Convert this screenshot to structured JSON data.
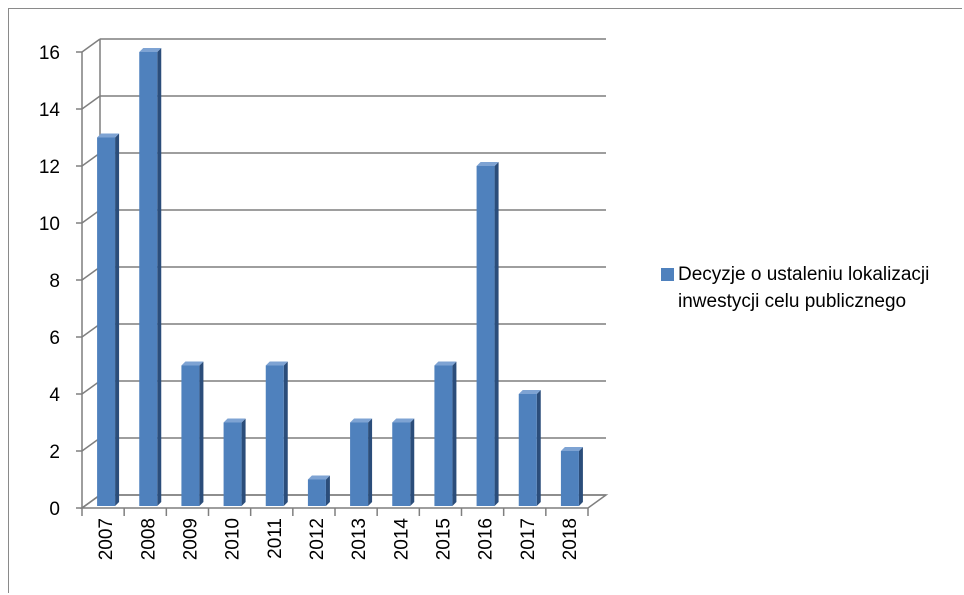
{
  "chart_data": {
    "type": "bar",
    "style": "3d-clustered-column",
    "categories": [
      "2007",
      "2008",
      "2009",
      "2010",
      "2011",
      "2012",
      "2013",
      "2014",
      "2015",
      "2016",
      "2017",
      "2018"
    ],
    "series": [
      {
        "name": "Decyzje o ustaleniu lokalizacji inwestycji celu publicznego",
        "values": [
          13,
          16,
          5,
          3,
          5,
          1,
          3,
          3,
          5,
          12,
          4,
          2
        ]
      }
    ],
    "ylim": [
      0,
      16
    ],
    "yticks": [
      0,
      2,
      4,
      6,
      8,
      10,
      12,
      14,
      16
    ],
    "grid": true,
    "legend_position": "right",
    "colors": {
      "bar_front": "#4f81bd",
      "bar_side": "#2b4d7a",
      "bar_top": "#7ea3d3",
      "gridline": "#7f7f7f"
    }
  }
}
